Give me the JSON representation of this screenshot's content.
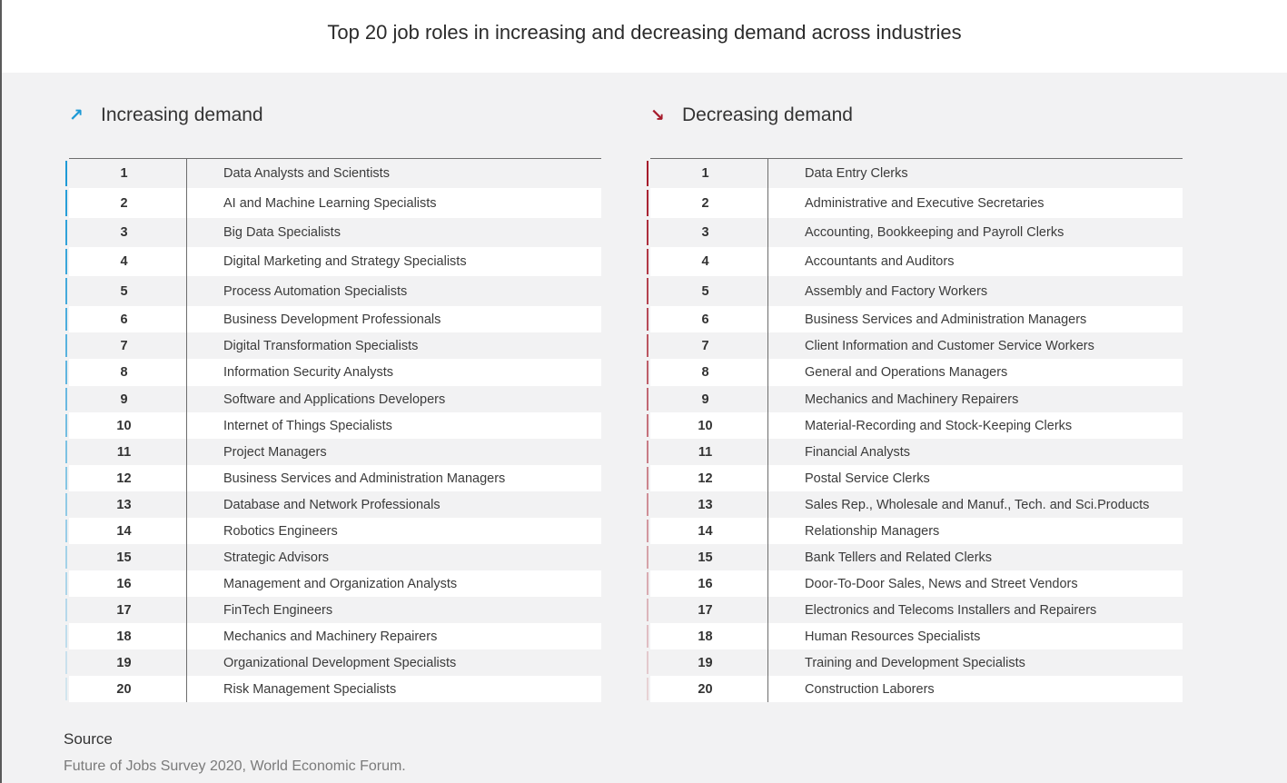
{
  "title": "Top 20 job roles in increasing and decreasing demand across industries",
  "increasing": {
    "heading": "Increasing demand",
    "icon": "arrow-up-right-icon",
    "accent": "#1e9ad6",
    "rows": [
      {
        "rank": "1",
        "role": "Data Analysts and Scientists"
      },
      {
        "rank": "2",
        "role": "AI and Machine Learning Specialists"
      },
      {
        "rank": "3",
        "role": "Big Data Specialists"
      },
      {
        "rank": "4",
        "role": "Digital Marketing and Strategy Specialists"
      },
      {
        "rank": "5",
        "role": "Process Automation Specialists"
      },
      {
        "rank": "6",
        "role": "Business Development Professionals"
      },
      {
        "rank": "7",
        "role": "Digital Transformation Specialists"
      },
      {
        "rank": "8",
        "role": "Information Security Analysts"
      },
      {
        "rank": "9",
        "role": "Software and Applications Developers"
      },
      {
        "rank": "10",
        "role": "Internet of Things Specialists"
      },
      {
        "rank": "11",
        "role": "Project Managers"
      },
      {
        "rank": "12",
        "role": "Business Services and Administration Managers"
      },
      {
        "rank": "13",
        "role": "Database and Network Professionals"
      },
      {
        "rank": "14",
        "role": "Robotics Engineers"
      },
      {
        "rank": "15",
        "role": "Strategic Advisors"
      },
      {
        "rank": "16",
        "role": "Management and Organization Analysts"
      },
      {
        "rank": "17",
        "role": "FinTech Engineers"
      },
      {
        "rank": "18",
        "role": "Mechanics and Machinery Repairers"
      },
      {
        "rank": "19",
        "role": "Organizational Development Specialists"
      },
      {
        "rank": "20",
        "role": "Risk Management Specialists"
      }
    ]
  },
  "decreasing": {
    "heading": "Decreasing demand",
    "icon": "arrow-down-right-icon",
    "accent": "#a61b2b",
    "rows": [
      {
        "rank": "1",
        "role": "Data Entry Clerks"
      },
      {
        "rank": "2",
        "role": "Administrative and Executive Secretaries"
      },
      {
        "rank": "3",
        "role": "Accounting,  Bookkeeping and Payroll Clerks"
      },
      {
        "rank": "4",
        "role": "Accountants and Auditors"
      },
      {
        "rank": "5",
        "role": "Assembly and Factory Workers"
      },
      {
        "rank": "6",
        "role": "Business Services and Administration Managers"
      },
      {
        "rank": "7",
        "role": "Client Information and Customer Service Workers"
      },
      {
        "rank": "8",
        "role": "General and Operations Managers"
      },
      {
        "rank": "9",
        "role": "Mechanics and Machinery Repairers"
      },
      {
        "rank": "10",
        "role": "Material-Recording and Stock-Keeping Clerks"
      },
      {
        "rank": "11",
        "role": "Financial Analysts"
      },
      {
        "rank": "12",
        "role": "Postal Service Clerks"
      },
      {
        "rank": "13",
        "role": "Sales Rep., Wholesale and Manuf., Tech. and Sci.Products"
      },
      {
        "rank": "14",
        "role": "Relationship Managers"
      },
      {
        "rank": "15",
        "role": "Bank Tellers and Related Clerks"
      },
      {
        "rank": "16",
        "role": "Door-To-Door Sales, News and Street Vendors"
      },
      {
        "rank": "17",
        "role": "Electronics and Telecoms Installers and Repairers"
      },
      {
        "rank": "18",
        "role": "Human Resources Specialists"
      },
      {
        "rank": "19",
        "role": "Training and Development Specialists"
      },
      {
        "rank": "20",
        "role": "Construction Laborers"
      }
    ]
  },
  "source": {
    "label": "Source",
    "text": "Future of Jobs Survey 2020, World Economic Forum."
  }
}
